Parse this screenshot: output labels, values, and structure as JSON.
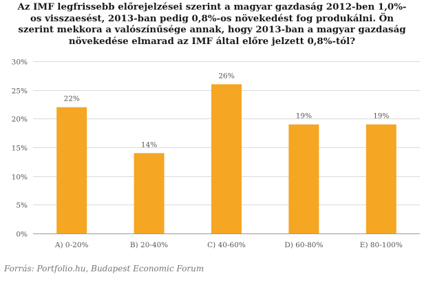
{
  "chart_data": {
    "type": "bar",
    "title": "Az IMF legfrissebb előrejelzései szerint a magyar gazdaság 2012-ben 1,0%-os visszaesést, 2013-ban pedig 0,8%-os növekedést fog produkálni. Ön szerint mekkora a valószínűsége annak, hogy 2013-ban a magyar gazdaság növekedése elmarad az IMF által előre jelzett 0,8%-tól?",
    "categories": [
      "A) 0-20%",
      "B) 20-40%",
      "C) 40-60%",
      "D) 60-80%",
      "E) 80-100%"
    ],
    "values": [
      22,
      14,
      26,
      19,
      19
    ],
    "value_labels": [
      "22%",
      "14%",
      "26%",
      "19%",
      "19%"
    ],
    "yticks": [
      0,
      5,
      10,
      15,
      20,
      25,
      30
    ],
    "ytick_labels": [
      "0%",
      "5%",
      "10%",
      "15%",
      "20%",
      "25%",
      "30%"
    ],
    "ylim": [
      0,
      30
    ],
    "grid": true,
    "legend": "none",
    "bar_color": "#f5a623",
    "xlabel": "",
    "ylabel": ""
  },
  "source": "Forrás: Portfolio.hu, Budapest Economic Forum"
}
